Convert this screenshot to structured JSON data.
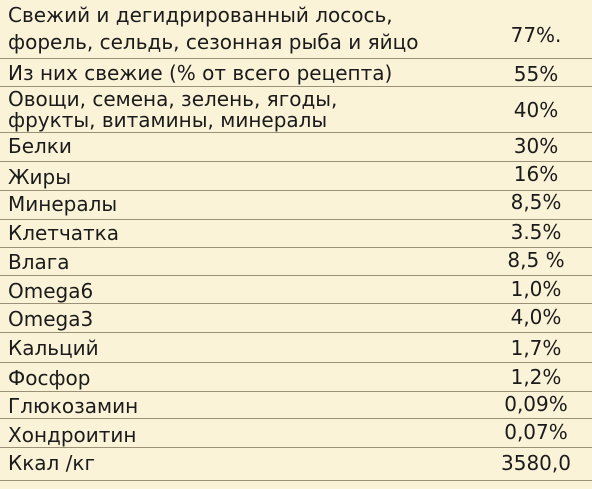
{
  "rows": [
    {
      "label": "Свежий  и  дегидрированный лосось, форель, сельдь, сезонная рыба и яйцо",
      "value": "77%."
    },
    {
      "label": "Из них свежие (% от всего рецепта)",
      "value": "55%"
    },
    {
      "label": "Овощи, семена, зелень, ягоды, фрукты, витамины, минералы",
      "value": "40%"
    },
    {
      "label": "Белки",
      "value": "30%"
    },
    {
      "label": "Жиры",
      "value": "16%"
    },
    {
      "label": "Минералы",
      "value": "8,5%"
    },
    {
      "label": "Клетчатка",
      "value": "3.5%"
    },
    {
      "label": "Влага",
      "value": "8,5 %"
    },
    {
      "label": "Omega6",
      "value": "1,0%"
    },
    {
      "label": "Omega3",
      "value": "4,0%"
    },
    {
      "label": "Кальций",
      "value": "1,7%"
    },
    {
      "label": "Фосфор",
      "value": "1,2%"
    },
    {
      "label": "Глюкозамин",
      "value": "0,09%"
    },
    {
      "label": "Хондроитин",
      "value": "0,07%"
    },
    {
      "label": "Ккал /кг",
      "value": "3580,0"
    }
  ],
  "split": {
    "row0": [
      "Свежий  и  дегидрированный лосось,",
      "форель, сельдь, сезонная рыба и яйцо"
    ],
    "row2": [
      "Овощи, семена, зелень, ягоды,",
      "фрукты, витамины, минералы"
    ]
  }
}
